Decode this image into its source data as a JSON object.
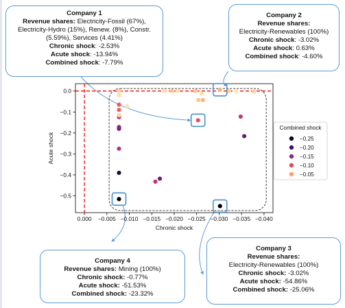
{
  "chart_data": {
    "type": "scatter",
    "xlabel": "Chronic shock",
    "ylabel": "Acute shock",
    "xlim": [
      0.002,
      -0.042
    ],
    "ylim": [
      -0.58,
      0.035
    ],
    "x_inverted": true,
    "x_ticks": [
      0.0,
      -0.005,
      -0.01,
      -0.015,
      -0.02,
      -0.025,
      -0.03,
      -0.035,
      -0.04
    ],
    "x_tick_labels": [
      "0.000",
      "−0.005",
      "−0.010",
      "−0.015",
      "−0.020",
      "−0.025",
      "−0.030",
      "−0.035",
      "−0.040"
    ],
    "y_ticks": [
      0.0,
      -0.1,
      -0.2,
      -0.3,
      -0.4,
      -0.5
    ],
    "y_tick_labels": [
      "0.0",
      "−0.1",
      "−0.2",
      "−0.3",
      "−0.4",
      "−0.5"
    ],
    "grid": false,
    "legend": {
      "title": "Combined shock",
      "position": "right",
      "entries": [
        {
          "label": "−0.25",
          "color": "#0a0822"
        },
        {
          "label": "−0.20",
          "color": "#3b0f70"
        },
        {
          "label": "−0.15",
          "color": "#8c2981"
        },
        {
          "label": "−0.10",
          "color": "#de4968"
        },
        {
          "label": "−0.05",
          "color": "#fe9f6d"
        }
      ]
    },
    "points": [
      {
        "x": -0.0077,
        "y": -0.5153,
        "color": "#000004"
      },
      {
        "x": -0.0302,
        "y": -0.5486,
        "color": "#000004"
      },
      {
        "x": -0.0253,
        "y": -0.1394,
        "color": "#e34f62"
      },
      {
        "x": -0.0302,
        "y": 0.0063,
        "color": "#fcb47e"
      },
      {
        "x": -0.0077,
        "y": -0.39,
        "color": "#1a0d3a"
      },
      {
        "x": -0.0077,
        "y": -0.275,
        "color": "#b73779"
      },
      {
        "x": -0.0077,
        "y": -0.18,
        "color": "#6a1b7a"
      },
      {
        "x": -0.0077,
        "y": -0.172,
        "color": "#8a2680"
      },
      {
        "x": -0.0077,
        "y": -0.125,
        "color": "#c83e73"
      },
      {
        "x": -0.0077,
        "y": -0.065,
        "color": "#e65d61"
      },
      {
        "x": -0.0077,
        "y": -0.09,
        "color": "#f1605d"
      },
      {
        "x": -0.0077,
        "y": -0.115,
        "color": "#fdd49e"
      },
      {
        "x": -0.0077,
        "y": -0.02,
        "color": "#fde0a8"
      },
      {
        "x": -0.0077,
        "y": 0.0,
        "color": "#fdd49e"
      },
      {
        "x": -0.0095,
        "y": -0.072,
        "color": "#fde5b0"
      },
      {
        "x": -0.0158,
        "y": -0.432,
        "color": "#c2367a"
      },
      {
        "x": -0.0168,
        "y": -0.418,
        "color": "#6b1c7b"
      },
      {
        "x": -0.0178,
        "y": 0.0,
        "color": "#fde0a8"
      },
      {
        "x": -0.0195,
        "y": 0.0,
        "color": "#fdc48c"
      },
      {
        "x": -0.0208,
        "y": 0.0,
        "color": "#fde5b0"
      },
      {
        "x": -0.0248,
        "y": 0.0,
        "color": "#fdc48c"
      },
      {
        "x": -0.0254,
        "y": -0.043,
        "color": "#fdc48c"
      },
      {
        "x": -0.0264,
        "y": -0.043,
        "color": "#fdb47a"
      },
      {
        "x": -0.0261,
        "y": -0.012,
        "color": "#fde0a8"
      },
      {
        "x": -0.0322,
        "y": 0.0,
        "color": "#fdd49e"
      },
      {
        "x": -0.0338,
        "y": 0.0,
        "color": "#fde5b0"
      },
      {
        "x": -0.0378,
        "y": -0.002,
        "color": "#fdd49e"
      },
      {
        "x": -0.0348,
        "y": -0.122,
        "color": "#c2367a"
      },
      {
        "x": -0.0356,
        "y": -0.215,
        "color": "#6b1c7b"
      }
    ],
    "reference_lines": [
      {
        "axis": "x",
        "value": 0.0,
        "color": "#ff0000",
        "style": "dashed"
      },
      {
        "axis": "y",
        "value": 0.0,
        "color": "#ff0000",
        "style": "dashed"
      }
    ],
    "highlighted": [
      {
        "x": -0.0253,
        "y": -0.1394
      },
      {
        "x": -0.0302,
        "y": 0.0063
      },
      {
        "x": -0.0077,
        "y": -0.5153
      },
      {
        "x": -0.0302,
        "y": -0.5486
      }
    ]
  },
  "callouts": {
    "company1": {
      "title": "Company 1",
      "revenue_label": "Revenue shares:",
      "revenue_text": "Electricity-Fossil (67%), Electricity-Hydro (15%), Renew. (8%), Constr. (5.59%), Services (4.41%)",
      "chronic_label": "Chronic shock",
      "chronic_value": ": -2.53%",
      "acute_label": "Acute shock",
      "acute_value": ": -13.94%",
      "combined_label": "Combined shock",
      "combined_value": ": -7.79%"
    },
    "company2": {
      "title": "Company 2",
      "revenue_label": "Revenue shares:",
      "revenue_text": "Electricity-Renewables (100%)",
      "chronic_label": "Chronic shock",
      "chronic_value": ": -3.02%",
      "acute_label": "Acute shock",
      "acute_value": ": 0.63%",
      "combined_label": "Combined shock",
      "combined_value": ": -4.60%"
    },
    "company3": {
      "title": "Company 3",
      "revenue_label": "Revenue shares:",
      "revenue_text": "Electricity-Renewables (100%)",
      "chronic_label": "Chronic shock:",
      "chronic_value": " -3.02%",
      "acute_label": "Acute shock:",
      "acute_value": " -54.86%",
      "combined_label": "Combined shock:",
      "combined_value": " -25.06%"
    },
    "company4": {
      "title": "Company 4",
      "revenue_label": "Revenue shares:",
      "revenue_text": " Mining (100%)",
      "chronic_label": "Chronic shock:",
      "chronic_value": " -0.77%",
      "acute_label": "Acute shock:",
      "acute_value": " -51.53%",
      "combined_label": "Combined shock:",
      "combined_value": " -23.32%"
    }
  }
}
